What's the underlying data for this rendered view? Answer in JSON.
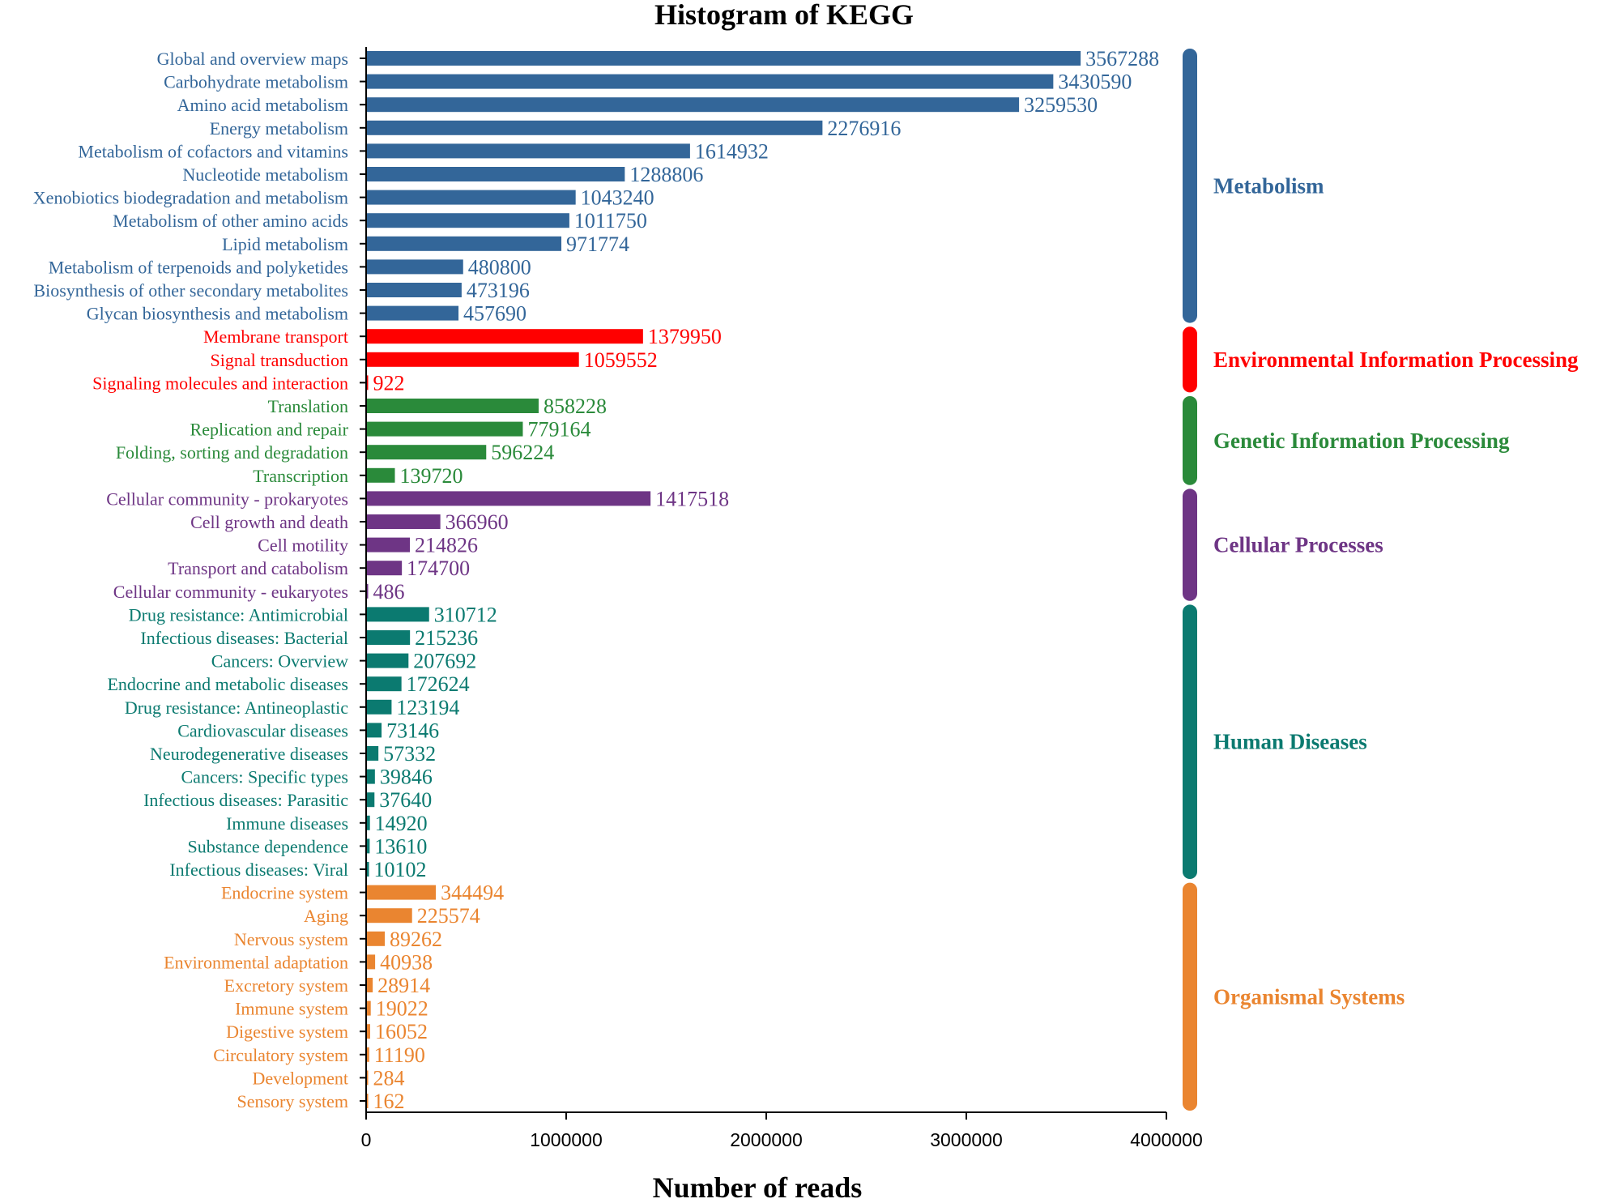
{
  "chart_data": {
    "type": "bar",
    "orientation": "horizontal",
    "title": "Histogram of KEGG",
    "xlabel": "Number of reads",
    "ylabel": "",
    "xlim": [
      0,
      4000000
    ],
    "xticks": [
      0,
      1000000,
      2000000,
      3000000,
      4000000
    ],
    "xtick_labels": [
      "0",
      "1000000",
      "2000000",
      "3000000",
      "4000000"
    ],
    "grid": false,
    "groups": [
      {
        "name": "Metabolism",
        "color": "#336699",
        "categories": [
          "Global and overview maps",
          "Carbohydrate metabolism",
          "Amino acid metabolism",
          "Energy metabolism",
          "Metabolism of cofactors and vitamins",
          "Nucleotide metabolism",
          "Xenobiotics biodegradation and metabolism",
          "Metabolism of other amino acids",
          "Lipid metabolism",
          "Metabolism of terpenoids and polyketides",
          "Biosynthesis of other secondary metabolites",
          "Glycan biosynthesis and metabolism"
        ],
        "values": [
          3567288,
          3430590,
          3259530,
          2276916,
          1614932,
          1288806,
          1043240,
          1011750,
          971774,
          480800,
          473196,
          457690
        ]
      },
      {
        "name": "Environmental Information Processing",
        "color": "#ff0000",
        "categories": [
          "Membrane transport",
          "Signal transduction",
          "Signaling molecules and interaction"
        ],
        "values": [
          1379950,
          1059552,
          922
        ]
      },
      {
        "name": "Genetic Information Processing",
        "color": "#2a8a3a",
        "categories": [
          "Translation",
          "Replication and repair",
          "Folding, sorting and degradation",
          "Transcription"
        ],
        "values": [
          858228,
          779164,
          596224,
          139720
        ]
      },
      {
        "name": "Cellular Processes",
        "color": "#6e3585",
        "categories": [
          "Cellular community - prokaryotes",
          "Cell growth and death",
          "Cell motility",
          "Transport and catabolism",
          "Cellular community - eukaryotes"
        ],
        "values": [
          1417518,
          366960,
          214826,
          174700,
          486
        ]
      },
      {
        "name": "Human Diseases",
        "color": "#0b7a70",
        "categories": [
          "Drug resistance: Antimicrobial",
          "Infectious diseases: Bacterial",
          "Cancers: Overview",
          "Endocrine and metabolic diseases",
          "Drug resistance: Antineoplastic",
          "Cardiovascular diseases",
          "Neurodegenerative diseases",
          "Cancers: Specific types",
          "Infectious diseases: Parasitic",
          "Immune diseases",
          "Substance dependence",
          "Infectious diseases: Viral"
        ],
        "values": [
          310712,
          215236,
          207692,
          172624,
          123194,
          73146,
          57332,
          39846,
          37640,
          14920,
          13610,
          10102
        ]
      },
      {
        "name": "Organismal Systems",
        "color": "#ea8530",
        "categories": [
          "Endocrine system",
          "Aging",
          "Nervous system",
          "Environmental adaptation",
          "Excretory system",
          "Immune system",
          "Digestive system",
          "Circulatory system",
          "Development",
          "Sensory system"
        ],
        "values": [
          344494,
          225574,
          89262,
          40938,
          28914,
          19022,
          16052,
          11190,
          284,
          162
        ]
      }
    ]
  }
}
